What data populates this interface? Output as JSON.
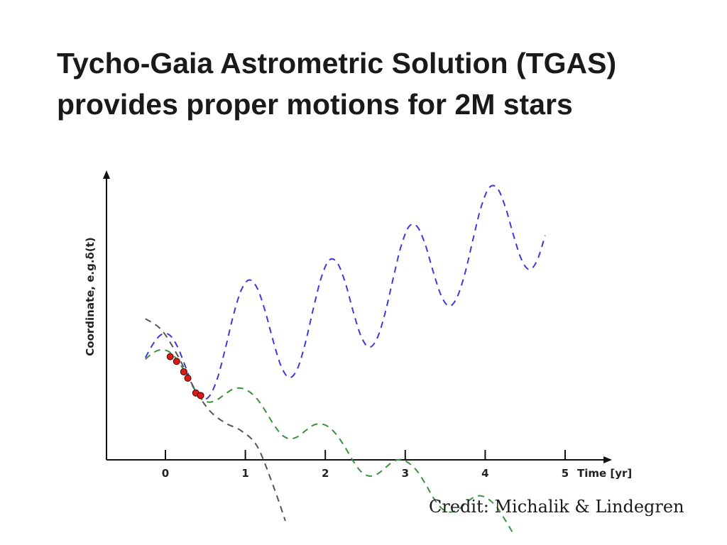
{
  "slide": {
    "title_line1": "Tycho-Gaia Astrometric Solution (TGAS)",
    "title_line2": "provides proper motions for 2M stars",
    "credit": "Credit: Michalik & Lindegren"
  },
  "chart_data": {
    "type": "line",
    "title": "",
    "xlabel": "Time [yr]",
    "ylabel": "Coordinate, e.g.δ(t)",
    "xlim": [
      -0.75,
      5.5
    ],
    "ylim": [
      -6.5,
      5
    ],
    "xticks": [
      0,
      1,
      2,
      3,
      4,
      5
    ],
    "ytick_labels": false,
    "grid": false,
    "series": [
      {
        "style": "dashed",
        "color": "#3a3adf",
        "x": [
          -0.25,
          -0.15,
          -0.05,
          0.05,
          0.15,
          0.25,
          0.35,
          0.45,
          0.55,
          0.65,
          0.75,
          0.85,
          0.95,
          1.05,
          1.15,
          1.25,
          1.35,
          1.45,
          1.55,
          1.65,
          1.75,
          1.85,
          1.95,
          2.05,
          2.15,
          2.25,
          2.35,
          2.45,
          2.55,
          2.65,
          2.75,
          2.85,
          2.95,
          3.05,
          3.15,
          3.25,
          3.35,
          3.45,
          3.55,
          3.65,
          3.75,
          3.85,
          3.95,
          4.05,
          4.15,
          4.25,
          4.35,
          4.45,
          4.55,
          4.65,
          4.75
        ],
        "y": [
          -0.83,
          -0.38,
          -0.1,
          -0.11,
          -0.48,
          -1.11,
          -1.76,
          -2.13,
          -2.05,
          -1.49,
          -0.54,
          0.51,
          1.32,
          1.63,
          1.36,
          0.62,
          -0.32,
          -1.12,
          -1.46,
          -1.19,
          -0.37,
          0.72,
          1.71,
          2.26,
          2.17,
          1.54,
          0.62,
          -0.17,
          -0.5,
          -0.21,
          0.6,
          1.69,
          2.72,
          3.33,
          3.32,
          2.75,
          1.89,
          1.13,
          0.8,
          1.09,
          1.87,
          2.94,
          3.95,
          4.55,
          4.54,
          3.96,
          3.08,
          2.3,
          1.96,
          2.25,
          3.04
        ]
      },
      {
        "style": "dashed",
        "color": "#3c8f3c",
        "x": [
          -0.25,
          -0.15,
          -0.05,
          0.05,
          0.15,
          0.25,
          0.35,
          0.45,
          0.55,
          0.65,
          0.75,
          0.85,
          0.95,
          1.05,
          1.15,
          1.25,
          1.35,
          1.45,
          1.55,
          1.65,
          1.75,
          1.85,
          1.95,
          2.05,
          2.15,
          2.25,
          2.35,
          2.45,
          2.55,
          2.65,
          2.75,
          2.85,
          2.95,
          3.05,
          3.15,
          3.25,
          3.35,
          3.45,
          3.55,
          3.65,
          3.75,
          3.85,
          3.95,
          4.05,
          4.15,
          4.25,
          4.35
        ],
        "y": [
          -0.88,
          -0.67,
          -0.58,
          -0.65,
          -0.91,
          -1.31,
          -1.78,
          -2.14,
          -2.24,
          -2.16,
          -1.98,
          -1.82,
          -1.8,
          -1.91,
          -2.15,
          -2.52,
          -2.93,
          -3.26,
          -3.4,
          -3.34,
          -3.15,
          -2.97,
          -2.93,
          -3.04,
          -3.3,
          -3.68,
          -4.11,
          -4.45,
          -4.58,
          -4.52,
          -4.32,
          -4.12,
          -4.06,
          -4.18,
          -4.43,
          -4.82,
          -5.26,
          -5.59,
          -5.72,
          -5.66,
          -5.46,
          -5.26,
          -5.21,
          -5.33,
          -5.58,
          -5.97,
          -6.4
        ]
      },
      {
        "style": "dashed",
        "color": "#555555",
        "x": [
          -0.25,
          -0.05,
          0.15,
          0.35,
          0.55,
          0.75,
          0.95,
          1.15,
          1.35,
          1.5
        ],
        "y": [
          0.4,
          0.05,
          -0.75,
          -1.75,
          -2.5,
          -2.9,
          -3.15,
          -3.65,
          -4.9,
          -6.0
        ]
      }
    ],
    "observations": {
      "color": "#dd1a1a",
      "x": [
        0.06,
        0.14,
        0.23,
        0.28,
        0.38,
        0.44
      ],
      "y": [
        -0.8,
        -0.95,
        -1.28,
        -1.48,
        -1.95,
        -2.03
      ]
    }
  }
}
